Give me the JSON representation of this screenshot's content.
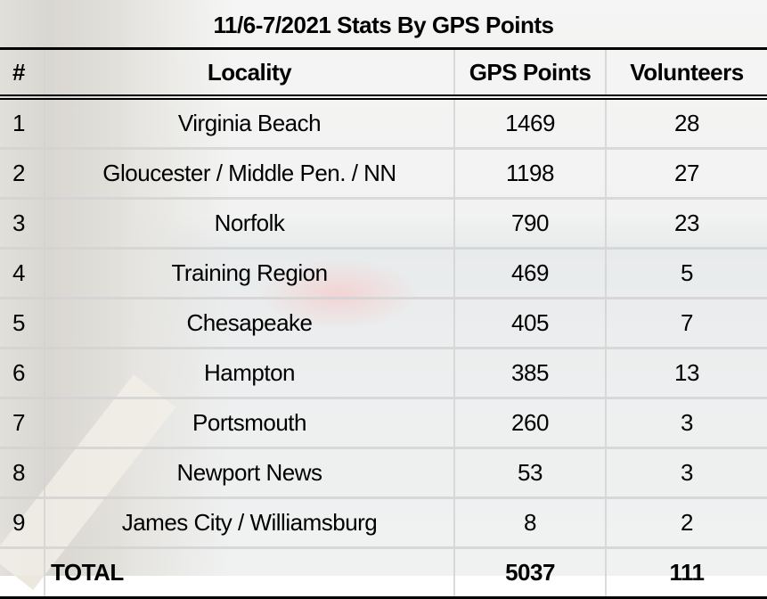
{
  "title": "11/6-7/2021 Stats By GPS Points",
  "columns": [
    "#",
    "Locality",
    "GPS Points",
    "Volunteers"
  ],
  "rows": [
    {
      "n": "1",
      "locality": "Virginia Beach",
      "gps": "1469",
      "vol": "28"
    },
    {
      "n": "2",
      "locality": "Gloucester / Middle Pen. / NN",
      "gps": "1198",
      "vol": "27"
    },
    {
      "n": "3",
      "locality": "Norfolk",
      "gps": "790",
      "vol": "23"
    },
    {
      "n": "4",
      "locality": "Training Region",
      "gps": "469",
      "vol": "5"
    },
    {
      "n": "5",
      "locality": "Chesapeake",
      "gps": "405",
      "vol": "7"
    },
    {
      "n": "6",
      "locality": "Hampton",
      "gps": "385",
      "vol": "13"
    },
    {
      "n": "7",
      "locality": "Portsmouth",
      "gps": "260",
      "vol": "3"
    },
    {
      "n": "8",
      "locality": "Newport News",
      "gps": "53",
      "vol": "3"
    },
    {
      "n": "9",
      "locality": "James City / Williamsburg",
      "gps": "8",
      "vol": "2"
    }
  ],
  "total": {
    "label": "TOTAL",
    "gps": "5037",
    "vol": "111"
  }
}
